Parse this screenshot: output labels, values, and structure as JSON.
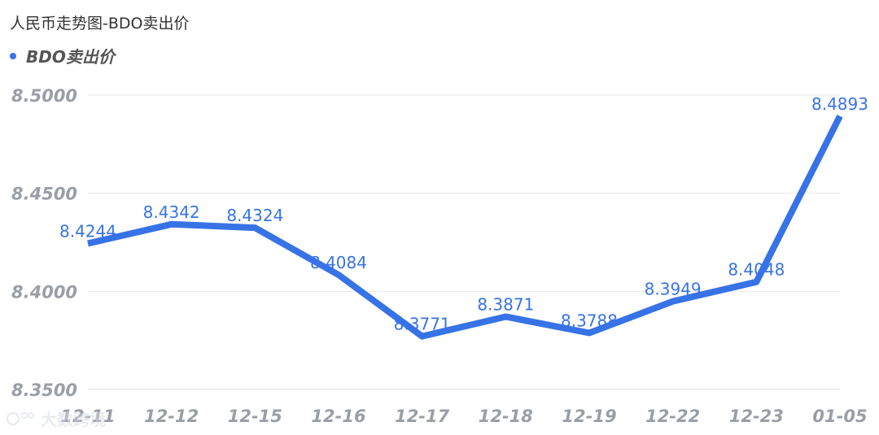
{
  "title": "人民币走势图-BDO卖出价",
  "legend": {
    "label": "BDO卖出价"
  },
  "watermark": {
    "text": "大数跨境"
  },
  "colors": {
    "line": "#3773e6",
    "grid": "#e8e8e8",
    "axis": "#d9d9d9",
    "tick": "#9a9ea6"
  },
  "chart_data": {
    "type": "line",
    "categories": [
      "12-11",
      "12-12",
      "12-15",
      "12-16",
      "12-17",
      "12-18",
      "12-19",
      "12-22",
      "12-23",
      "01-05"
    ],
    "series": [
      {
        "name": "BDO卖出价",
        "values": [
          8.4244,
          8.4342,
          8.4324,
          8.4084,
          8.3771,
          8.3871,
          8.3788,
          8.3949,
          8.4048,
          8.4893
        ],
        "labels": [
          "8.4244",
          "8.4342",
          "8.4324",
          "8.4084",
          "8.3771",
          "8.3871",
          "8.3788",
          "8.3949",
          "8.4048",
          "8.4893"
        ]
      }
    ],
    "title": "人民币走势图-BDO卖出价",
    "ylim": [
      8.35,
      8.5
    ],
    "yticks": [
      "8.3500",
      "8.4000",
      "8.4500",
      "8.5000"
    ],
    "grid": true,
    "legend": "top-left"
  }
}
